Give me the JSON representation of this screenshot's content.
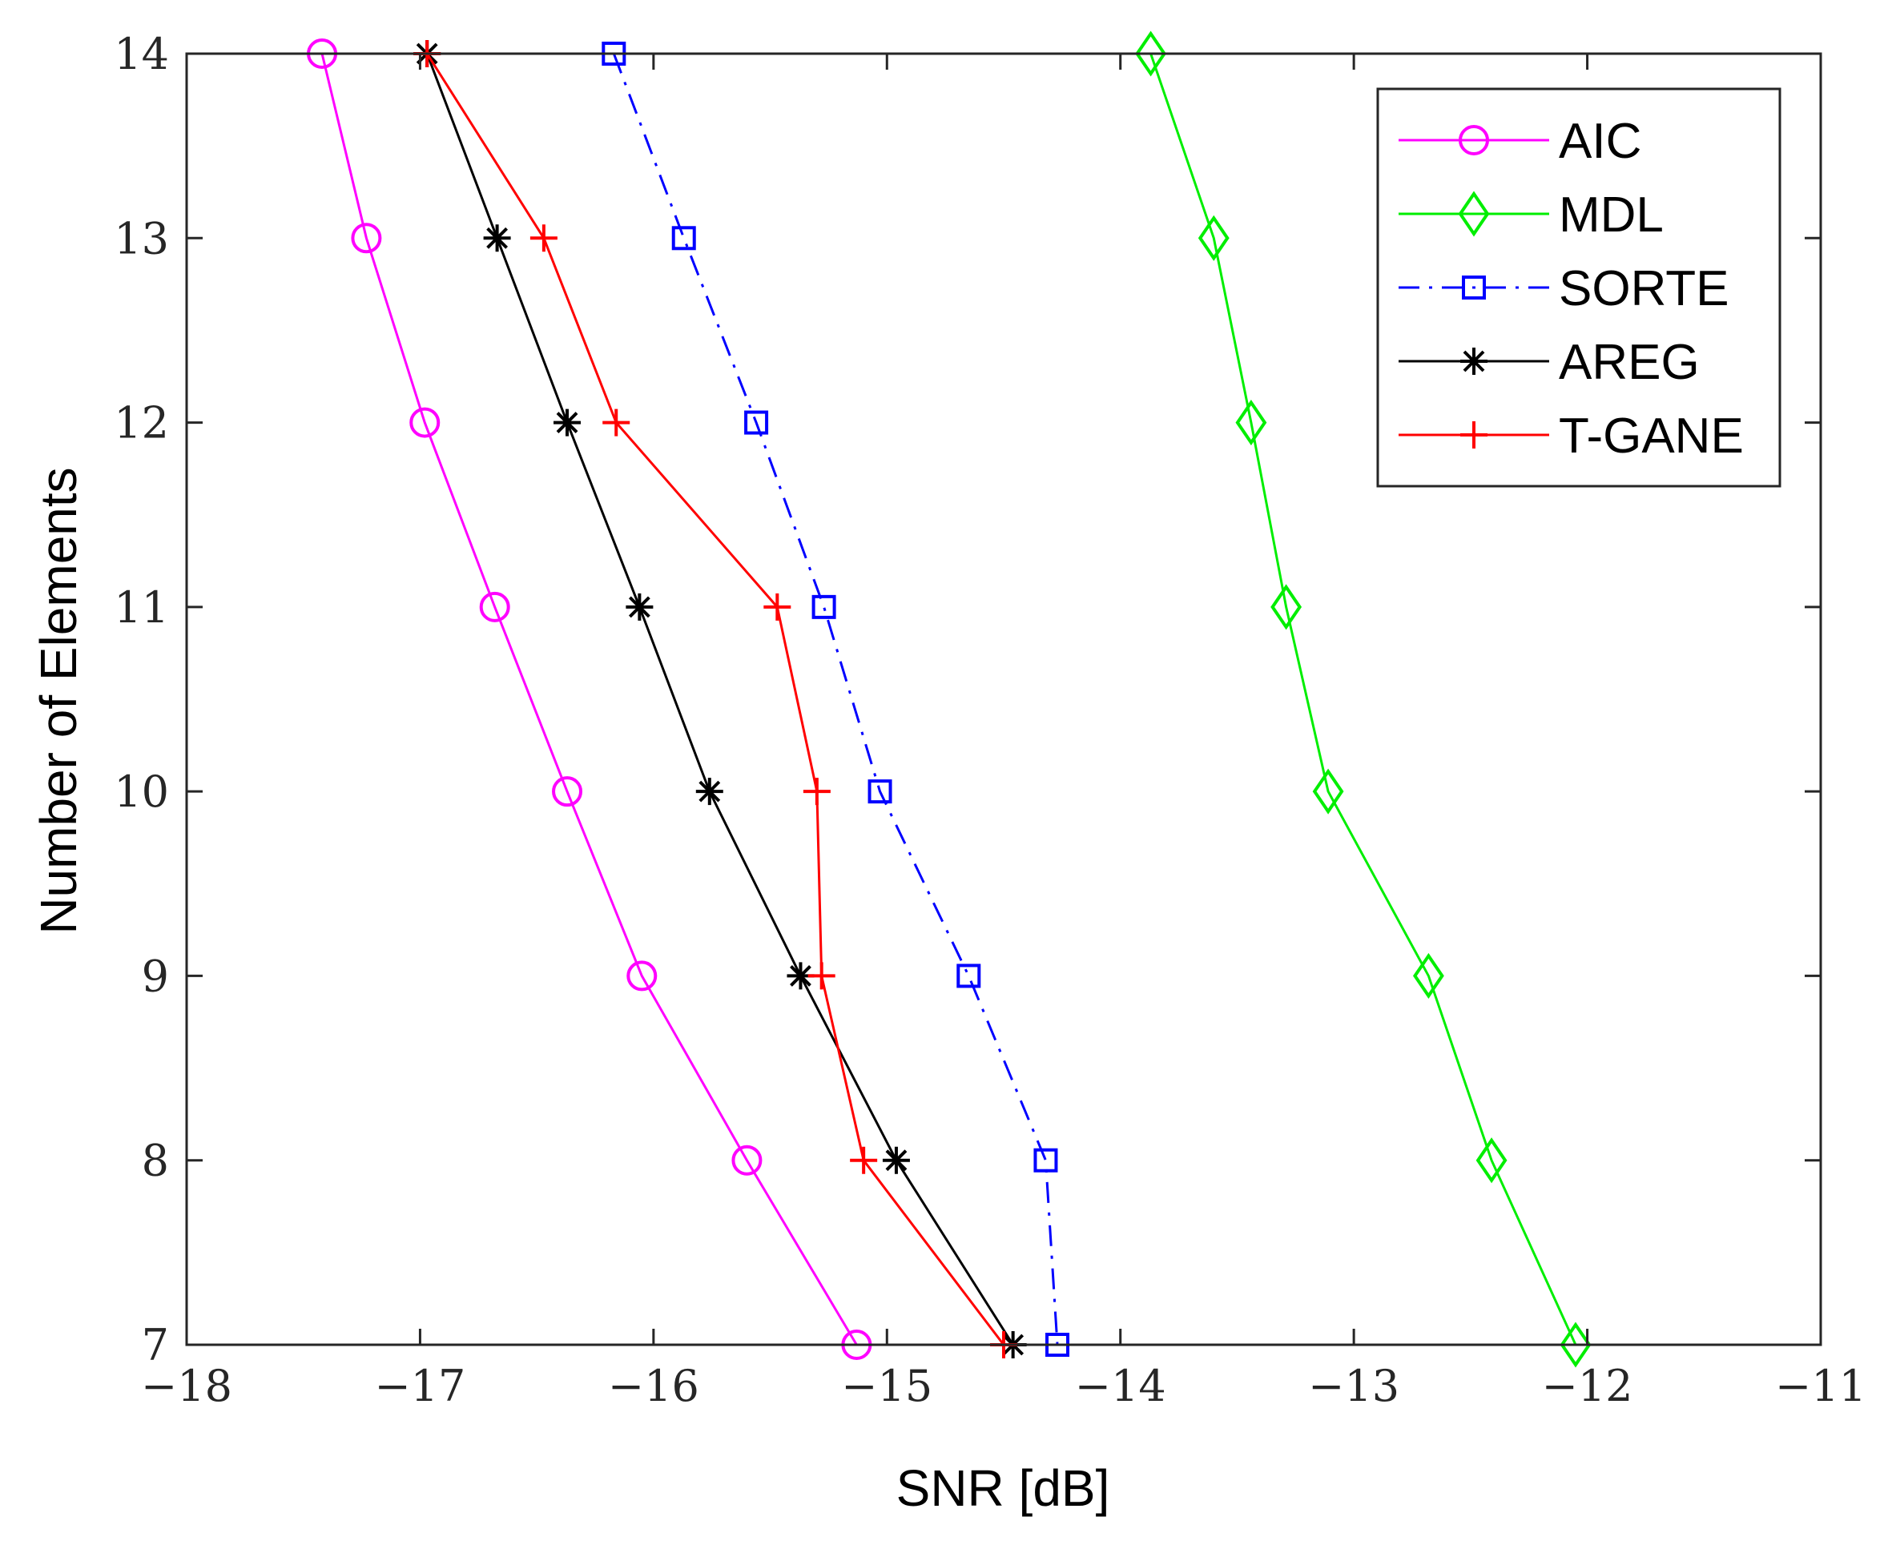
{
  "chart_data": {
    "type": "line",
    "title": "",
    "xlabel": "SNR [dB]",
    "ylabel": "Number of Elements",
    "xlim": [
      -18,
      -11
    ],
    "ylim": [
      7,
      14
    ],
    "xticks": [
      -18,
      -17,
      -16,
      -15,
      -14,
      -13,
      -12,
      -11
    ],
    "yticks": [
      7,
      8,
      9,
      10,
      11,
      12,
      13,
      14
    ],
    "xtick_labels": [
      "−18",
      "−17",
      "−16",
      "−15",
      "−14",
      "−13",
      "−12",
      "−11"
    ],
    "ytick_labels": [
      "7",
      "8",
      "9",
      "10",
      "11",
      "12",
      "13",
      "14"
    ],
    "grid": false,
    "legend_position": "top-right",
    "y": [
      14,
      13,
      12,
      11,
      10,
      9,
      8,
      7
    ],
    "series": [
      {
        "name": "AIC",
        "color": "#ff00ff",
        "marker": "circle",
        "dash": "solid",
        "x": [
          -17.42,
          -17.23,
          -16.98,
          -16.68,
          -16.37,
          -16.05,
          -15.6,
          -15.13
        ]
      },
      {
        "name": "MDL",
        "color": "#00ee00",
        "marker": "diamond",
        "dash": "solid",
        "x": [
          -13.87,
          -13.6,
          -13.44,
          -13.29,
          -13.11,
          -12.68,
          -12.41,
          -12.05
        ]
      },
      {
        "name": "SORTE",
        "color": "#0000ff",
        "marker": "square",
        "dash": "dashdot",
        "x": [
          -16.17,
          -15.87,
          -15.56,
          -15.27,
          -15.03,
          -14.65,
          -14.32,
          -14.27
        ]
      },
      {
        "name": "AREG",
        "color": "#000000",
        "marker": "asterisk",
        "dash": "solid",
        "x": [
          -16.97,
          -16.67,
          -16.37,
          -16.06,
          -15.76,
          -15.37,
          -14.96,
          -14.46
        ]
      },
      {
        "name": "T-GANE",
        "color": "#ff0000",
        "marker": "plus",
        "dash": "solid",
        "x": [
          -16.97,
          -16.47,
          -16.16,
          -15.47,
          -15.3,
          -15.28,
          -15.1,
          -14.5
        ]
      }
    ]
  }
}
